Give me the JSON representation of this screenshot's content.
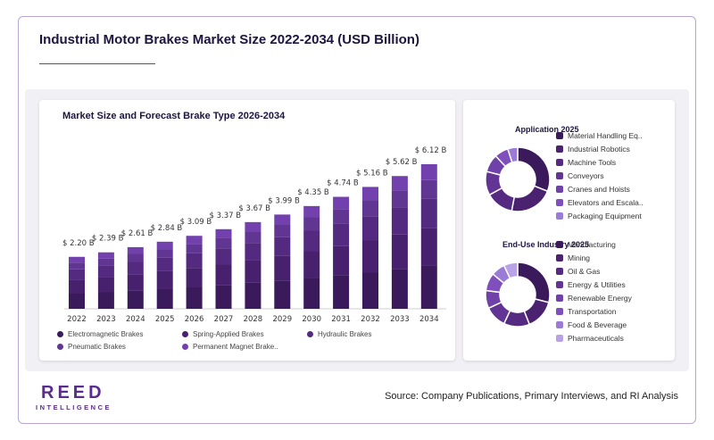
{
  "header": {
    "title": "Industrial Motor Brakes Market Size 2022-2034 (USD Billion)"
  },
  "colors": {
    "accent": "#6b3fa0",
    "segments": [
      "#3b1a5c",
      "#47206e",
      "#542a80",
      "#613592",
      "#7341ad"
    ],
    "pie": [
      "#3b1a5c",
      "#4a2270",
      "#552b82",
      "#623594",
      "#7041a8",
      "#7e4fbd",
      "#9a7bd6",
      "#b9a3e6"
    ]
  },
  "chart_data": [
    {
      "type": "bar",
      "title": "Market Size and Forecast Brake Type 2026-2034",
      "categories": [
        "2022",
        "2023",
        "2024",
        "2025",
        "2026",
        "2027",
        "2028",
        "2029",
        "2030",
        "2031",
        "2032",
        "2033",
        "2034"
      ],
      "totals": [
        2.2,
        2.39,
        2.61,
        2.84,
        3.09,
        3.37,
        3.67,
        3.99,
        4.35,
        4.74,
        5.16,
        5.62,
        6.12
      ],
      "data_labels": [
        "$ 2.20 B",
        "$ 2.39 B",
        "$ 2.61 B",
        "$ 2.84 B",
        "$ 3.09 B",
        "$ 3.37 B",
        "$ 3.67 B",
        "$ 3.99 B",
        "$ 4.35 B",
        "$ 4.74 B",
        "$ 5.16 B",
        "$ 5.62 B",
        "$ 6.12 B"
      ],
      "series": [
        {
          "name": "Electromagnetic Brakes",
          "share": 0.3
        },
        {
          "name": "Spring-Applied Brakes",
          "share": 0.26
        },
        {
          "name": "Hydraulic Brakes",
          "share": 0.2
        },
        {
          "name": "Pneumatic Brakes",
          "share": 0.13
        },
        {
          "name": "Permanent Magnet Brake..",
          "share": 0.11
        }
      ],
      "stacked": true
    },
    {
      "type": "pie",
      "title": "Application 2025",
      "donut": true,
      "labels": [
        "Material Handling Eq..",
        "Industrial Robotics",
        "Machine Tools",
        "Conveyors",
        "Cranes and Hoists",
        "Elevators and Escala..",
        "Packaging Equipment"
      ],
      "values": [
        31,
        22,
        14,
        12,
        9,
        7,
        5
      ]
    },
    {
      "type": "pie",
      "title": "End-Use Industry 2025",
      "donut": true,
      "labels": [
        "Manufacturing",
        "Mining",
        "Oil & Gas",
        "Energy & Utilities",
        "Renewable Energy",
        "Transportation",
        "Food & Beverage",
        "Pharmaceuticals"
      ],
      "values": [
        29,
        15,
        13,
        11,
        9,
        9,
        7,
        7
      ]
    }
  ],
  "footer": {
    "logo_main": "REED",
    "logo_sub": "INTELLIGENCE",
    "source": "Source: Company Publications, Primary Interviews, and RI Analysis"
  }
}
